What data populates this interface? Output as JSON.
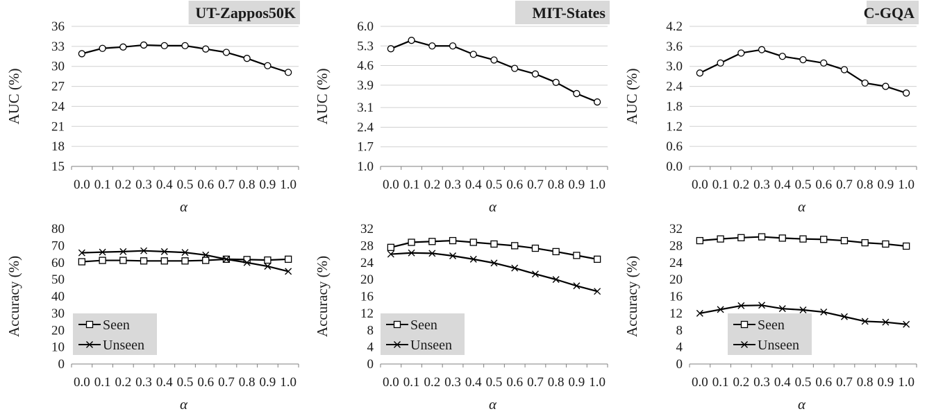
{
  "chart_data": [
    {
      "type": "line",
      "title": "UT-Zappos50K",
      "xlabel": "α",
      "ylabel": "AUC (%)",
      "x": [
        0.0,
        0.1,
        0.2,
        0.3,
        0.4,
        0.5,
        0.6,
        0.7,
        0.8,
        0.9,
        1.0
      ],
      "x_ticks": [
        "0.0",
        "0.1",
        "0.2",
        "0.3",
        "0.4",
        "0.5",
        "0.6",
        "0.7",
        "0.8",
        "0.9",
        "1.0"
      ],
      "ylim": [
        15,
        36
      ],
      "y_ticks": [
        "15",
        "18",
        "21",
        "24",
        "27",
        "30",
        "33",
        "36"
      ],
      "grid": true,
      "series": [
        {
          "marker": "circle",
          "values": [
            31.9,
            32.7,
            32.9,
            33.2,
            33.1,
            33.1,
            32.6,
            32.1,
            31.2,
            30.1,
            29.1
          ]
        }
      ]
    },
    {
      "type": "line",
      "title": "MIT-States",
      "xlabel": "α",
      "ylabel": "AUC (%)",
      "x": [
        0.0,
        0.1,
        0.2,
        0.3,
        0.4,
        0.5,
        0.6,
        0.7,
        0.8,
        0.9,
        1.0
      ],
      "x_ticks": [
        "0.0",
        "0.1",
        "0.2",
        "0.3",
        "0.4",
        "0.5",
        "0.6",
        "0.7",
        "0.8",
        "0.9",
        "1.0"
      ],
      "ylim": [
        1.0,
        6.0
      ],
      "y_ticks": [
        "1.0",
        "1.7",
        "2.4",
        "3.1",
        "3.9",
        "4.6",
        "5.3",
        "6.0"
      ],
      "grid": true,
      "series": [
        {
          "marker": "circle",
          "values": [
            5.2,
            5.5,
            5.3,
            5.3,
            5.0,
            4.8,
            4.5,
            4.3,
            4.0,
            3.6,
            3.3
          ]
        }
      ]
    },
    {
      "type": "line",
      "title": "C-GQA",
      "xlabel": "α",
      "ylabel": "AUC (%)",
      "x": [
        0.0,
        0.1,
        0.2,
        0.3,
        0.4,
        0.5,
        0.6,
        0.7,
        0.8,
        0.9,
        1.0
      ],
      "x_ticks": [
        "0.0",
        "0.1",
        "0.2",
        "0.3",
        "0.4",
        "0.5",
        "0.6",
        "0.7",
        "0.8",
        "0.9",
        "1.0"
      ],
      "ylim": [
        0.0,
        4.2
      ],
      "y_ticks": [
        "0.0",
        "0.6",
        "1.2",
        "1.8",
        "2.4",
        "3.0",
        "3.6",
        "4.2"
      ],
      "grid": true,
      "series": [
        {
          "marker": "circle",
          "values": [
            2.8,
            3.1,
            3.4,
            3.5,
            3.3,
            3.2,
            3.1,
            2.9,
            2.5,
            2.4,
            2.2
          ]
        }
      ]
    },
    {
      "type": "line",
      "title": "",
      "xlabel": "α",
      "ylabel": "Accuracy (%)",
      "x": [
        0.0,
        0.1,
        0.2,
        0.3,
        0.4,
        0.5,
        0.6,
        0.7,
        0.8,
        0.9,
        1.0
      ],
      "x_ticks": [
        "0.0",
        "0.1",
        "0.2",
        "0.3",
        "0.4",
        "0.5",
        "0.6",
        "0.7",
        "0.8",
        "0.9",
        "1.0"
      ],
      "ylim": [
        0,
        80
      ],
      "y_ticks": [
        "0",
        "10",
        "20",
        "30",
        "40",
        "50",
        "60",
        "70",
        "80"
      ],
      "grid": false,
      "legend": "bottom-left",
      "series": [
        {
          "name": "Seen",
          "marker": "square",
          "values": [
            60.5,
            61.3,
            61.3,
            61.0,
            61.0,
            61.0,
            61.3,
            62.0,
            61.8,
            61.5,
            62.0
          ]
        },
        {
          "name": "Unseen",
          "marker": "x",
          "values": [
            65.8,
            66.2,
            66.5,
            67.0,
            66.5,
            66.0,
            64.5,
            62.0,
            60.0,
            57.8,
            54.8
          ]
        }
      ]
    },
    {
      "type": "line",
      "title": "",
      "xlabel": "α",
      "ylabel": "Accuracy (%)",
      "x": [
        0.0,
        0.1,
        0.2,
        0.3,
        0.4,
        0.5,
        0.6,
        0.7,
        0.8,
        0.9,
        1.0
      ],
      "x_ticks": [
        "0.0",
        "0.1",
        "0.2",
        "0.3",
        "0.4",
        "0.5",
        "0.6",
        "0.7",
        "0.8",
        "0.9",
        "1.0"
      ],
      "ylim": [
        0,
        32
      ],
      "y_ticks": [
        "0",
        "4",
        "8",
        "12",
        "16",
        "20",
        "24",
        "28",
        "32"
      ],
      "grid": false,
      "legend": "bottom-left",
      "series": [
        {
          "name": "Seen",
          "marker": "square",
          "values": [
            27.6,
            28.8,
            29.0,
            29.2,
            28.8,
            28.4,
            28.0,
            27.4,
            26.6,
            25.7,
            24.8
          ]
        },
        {
          "name": "Unseen",
          "marker": "x",
          "values": [
            26.0,
            26.3,
            26.2,
            25.6,
            24.8,
            23.9,
            22.7,
            21.3,
            20.0,
            18.5,
            17.2
          ]
        }
      ]
    },
    {
      "type": "line",
      "title": "",
      "xlabel": "α",
      "ylabel": "Accuracy (%)",
      "x": [
        0.0,
        0.1,
        0.2,
        0.3,
        0.4,
        0.5,
        0.6,
        0.7,
        0.8,
        0.9,
        1.0
      ],
      "x_ticks": [
        "0.0",
        "0.1",
        "0.2",
        "0.3",
        "0.4",
        "0.5",
        "0.6",
        "0.7",
        "0.8",
        "0.9",
        "1.0"
      ],
      "ylim": [
        0,
        32
      ],
      "y_ticks": [
        "0",
        "4",
        "8",
        "12",
        "16",
        "20",
        "24",
        "28",
        "32"
      ],
      "grid": false,
      "legend": "bottom-left",
      "series": [
        {
          "name": "Seen",
          "marker": "square",
          "values": [
            29.2,
            29.6,
            29.9,
            30.1,
            29.8,
            29.6,
            29.5,
            29.2,
            28.7,
            28.4,
            27.9
          ]
        },
        {
          "name": "Unseen",
          "marker": "x",
          "values": [
            12.0,
            12.9,
            13.8,
            13.9,
            13.1,
            12.8,
            12.3,
            11.2,
            10.1,
            9.9,
            9.4
          ]
        }
      ]
    }
  ],
  "colors": {
    "line": "#000000",
    "grid": "#d0d0d0",
    "title_box": "#d9d9d9",
    "legend_box": "#d9d9d9",
    "marker_fill": "#ffffff"
  }
}
